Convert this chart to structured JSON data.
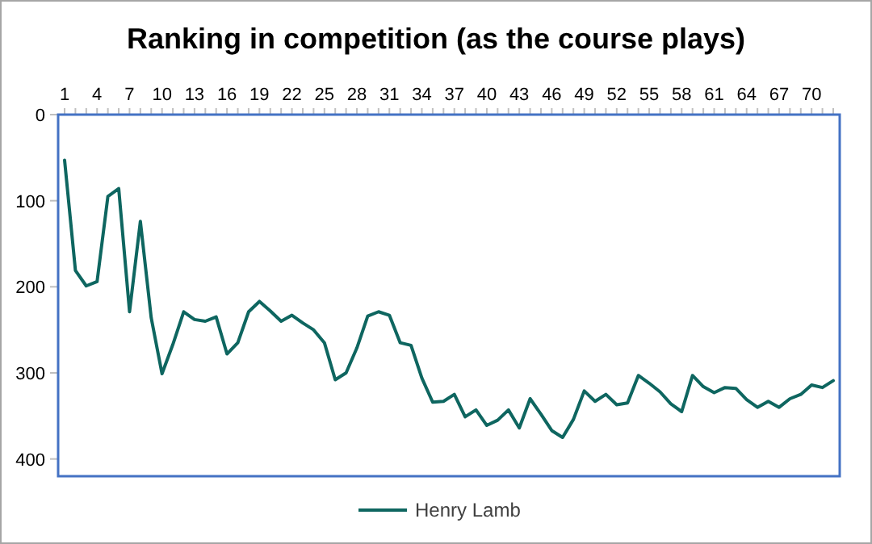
{
  "chart_data": {
    "type": "line",
    "title": "Ranking in competition (as the course plays)",
    "categories": [
      "1",
      null,
      null,
      "4",
      null,
      null,
      "7",
      null,
      null,
      "10",
      null,
      null,
      "13",
      null,
      null,
      "16",
      null,
      null,
      "19",
      null,
      null,
      "22",
      null,
      null,
      "25",
      null,
      null,
      "28",
      null,
      null,
      "31",
      null,
      null,
      "34",
      null,
      null,
      "37",
      null,
      null,
      "40",
      null,
      null,
      "43",
      null,
      null,
      "46",
      null,
      null,
      "49",
      null,
      null,
      "52",
      null,
      null,
      "55",
      null,
      null,
      "58",
      null,
      null,
      "61",
      null,
      null,
      "64",
      null,
      null,
      "67",
      null,
      null,
      "70",
      null,
      null
    ],
    "series": [
      {
        "name": "Henry Lamb",
        "color": "#0e6660",
        "values": [
          53,
          181,
          199,
          194,
          95,
          86,
          229,
          124,
          236,
          301,
          267,
          229,
          238,
          240,
          235,
          278,
          265,
          229,
          217,
          228,
          240,
          233,
          242,
          250,
          265,
          308,
          300,
          271,
          234,
          229,
          233,
          265,
          268,
          306,
          334,
          333,
          325,
          351,
          343,
          361,
          355,
          343,
          364,
          330,
          348,
          367,
          375,
          354,
          321,
          333,
          325,
          337,
          335,
          303,
          312,
          322,
          336,
          345,
          303,
          316,
          323,
          317,
          318,
          331,
          340,
          333,
          340,
          330,
          325,
          314,
          317,
          309
        ]
      }
    ],
    "ylim": [
      420,
      0
    ],
    "yticks": [
      0,
      100,
      200,
      300,
      400
    ],
    "grid": false,
    "legend": "bottom",
    "marker": "none",
    "line_style": "solid"
  }
}
